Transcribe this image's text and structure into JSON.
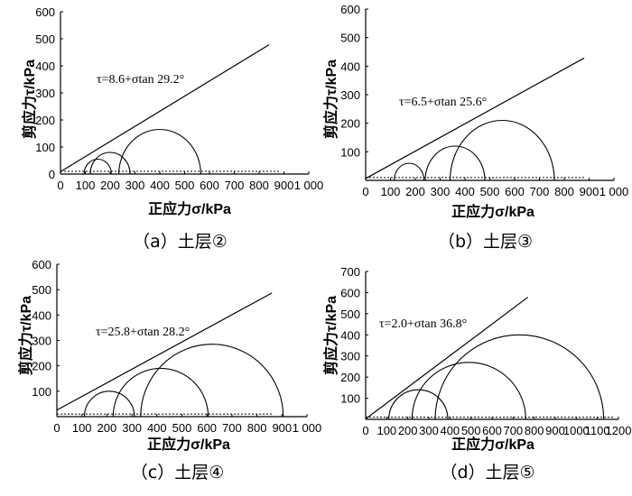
{
  "chart_data": [
    {
      "type": "mohr_circles",
      "caption": "（a）土层②",
      "equation": "τ=8.6+σtan 29.2°",
      "xlabel": "正应力σ/kPa",
      "ylabel": "剪应力τ/kPa",
      "x_ticks": [
        "0",
        "100",
        "200",
        "300",
        "400",
        "500",
        "600",
        "700",
        "800",
        "900",
        "1 000"
      ],
      "y_ticks": [
        "0",
        "100",
        "200",
        "300",
        "400",
        "500",
        "600"
      ],
      "xlim": [
        0,
        1000
      ],
      "ylim": [
        0,
        600
      ],
      "circles": [
        {
          "center": 150,
          "radius": 55
        },
        {
          "center": 200,
          "radius": 80
        },
        {
          "center": 400,
          "radius": 165
        }
      ],
      "envelope": {
        "intercept": 8.6,
        "angle_deg": 29.2,
        "x_end": 840
      },
      "dotted_baseline": {
        "y": 10,
        "x_end": 880
      }
    },
    {
      "type": "mohr_circles",
      "caption": "（b）土层③",
      "equation": "τ=6.5+σtan 25.6°",
      "xlabel": "正应力σ/kPa",
      "ylabel": "剪应力τ/kPa",
      "x_ticks": [
        "0",
        "100",
        "200",
        "300",
        "400",
        "500",
        "600",
        "700",
        "800",
        "900",
        "1 000"
      ],
      "y_ticks": [
        "100",
        "200",
        "300",
        "400",
        "500",
        "600"
      ],
      "xlim": [
        0,
        1000
      ],
      "ylim": [
        0,
        600
      ],
      "circles": [
        {
          "center": 175,
          "radius": 60
        },
        {
          "center": 360,
          "radius": 120
        },
        {
          "center": 550,
          "radius": 210
        }
      ],
      "envelope": {
        "intercept": 6.5,
        "angle_deg": 25.6,
        "x_end": 880
      },
      "dotted_baseline": {
        "y": 10,
        "x_end": 880
      }
    },
    {
      "type": "mohr_circles",
      "caption": "（c）土层④",
      "equation": "τ=25.8+σtan 28.2°",
      "xlabel": "正应力σ/kPa",
      "ylabel": "剪应力τ/kPa",
      "x_ticks": [
        "0",
        "100",
        "200",
        "300",
        "400",
        "500",
        "600",
        "700",
        "800",
        "900",
        "1 000"
      ],
      "y_ticks": [
        "100",
        "200",
        "300",
        "400",
        "500",
        "600"
      ],
      "xlim": [
        0,
        1000
      ],
      "ylim": [
        0,
        600
      ],
      "circles": [
        {
          "center": 210,
          "radius": 100
        },
        {
          "center": 415,
          "radius": 190
        },
        {
          "center": 620,
          "radius": 285
        }
      ],
      "envelope": {
        "intercept": 25.8,
        "angle_deg": 28.2,
        "x_end": 860
      },
      "dotted_baseline": {
        "y": 10,
        "x_end": 860
      }
    },
    {
      "type": "mohr_circles",
      "caption": "（d）土层⑤",
      "equation": "τ=2.0+σtan 36.8°",
      "xlabel": "正应力σ/kPa",
      "ylabel": "剪应力τ/kPa",
      "x_ticks": [
        "0",
        "100",
        "200",
        "300",
        "400",
        "500",
        "600",
        "700",
        "800",
        "900",
        "1000",
        "1100",
        "1200"
      ],
      "y_ticks": [
        "100",
        "200",
        "300",
        "400",
        "500",
        "600",
        "700"
      ],
      "xlim": [
        0,
        1200
      ],
      "ylim": [
        0,
        700
      ],
      "circles": [
        {
          "center": 250,
          "radius": 140
        },
        {
          "center": 490,
          "radius": 270
        },
        {
          "center": 730,
          "radius": 400
        }
      ],
      "envelope": {
        "intercept": 2.0,
        "angle_deg": 36.8,
        "x_end": 770
      },
      "dotted_baseline": {
        "y": 10,
        "x_end": 1180
      }
    }
  ]
}
